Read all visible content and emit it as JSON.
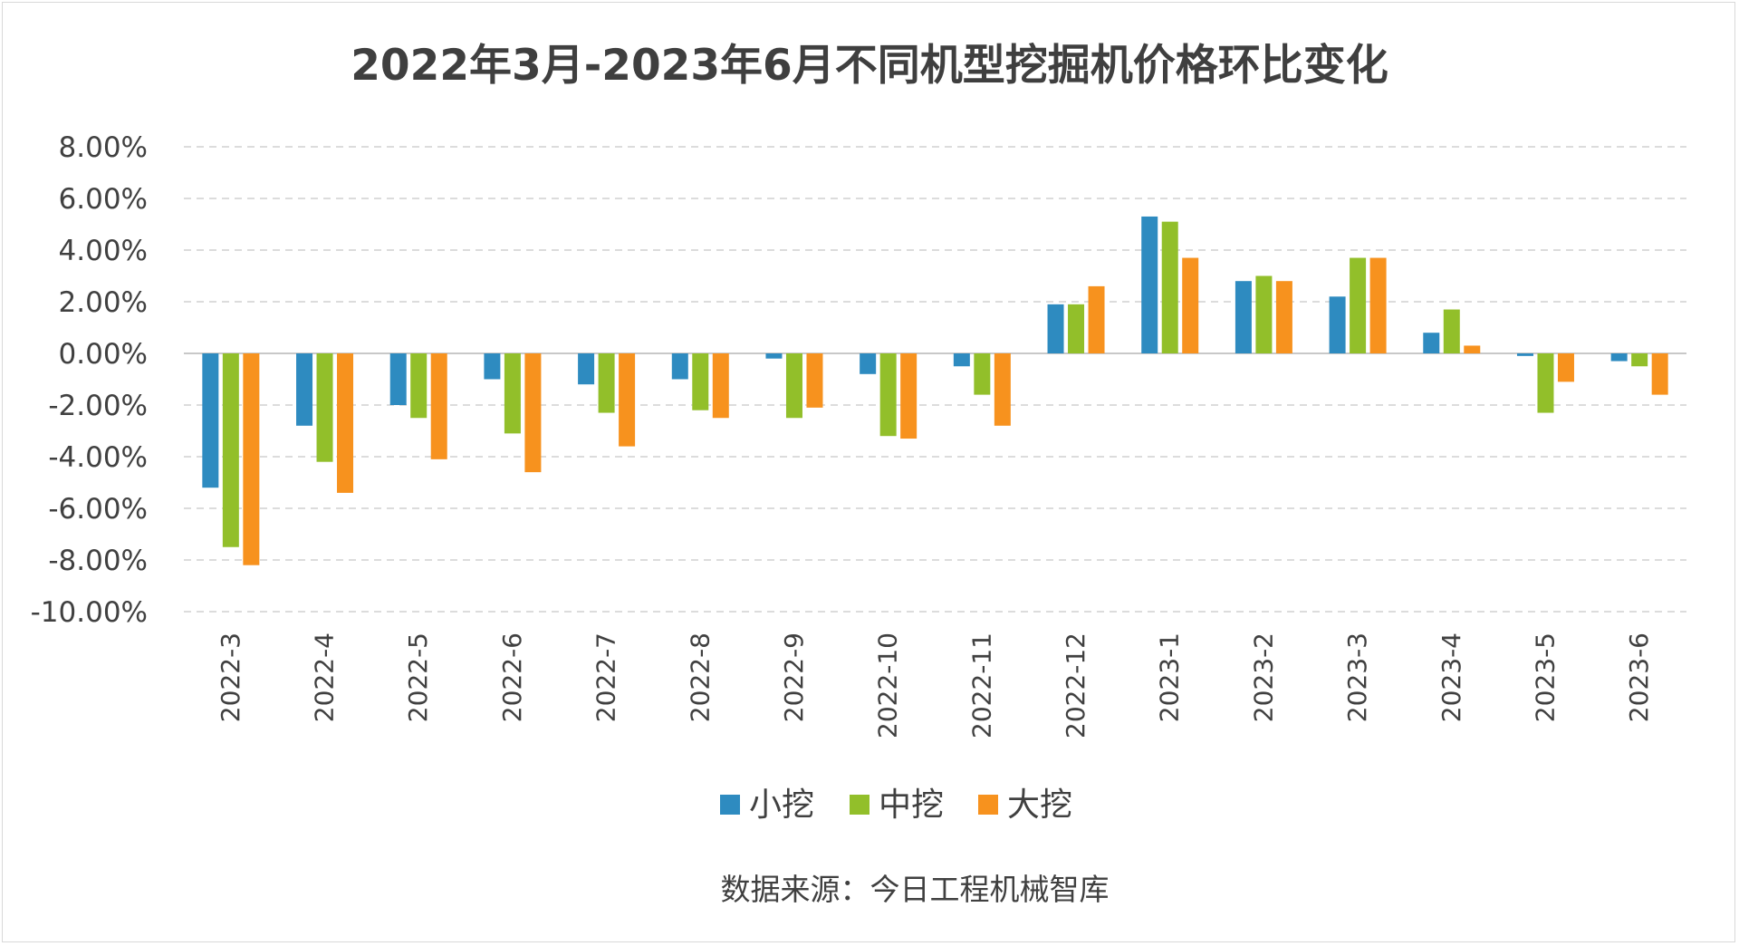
{
  "chart_data": {
    "type": "bar",
    "title": "2022年3月-2023年6月不同机型挖掘机价格环比变化",
    "categories": [
      "2022-3",
      "2022-4",
      "2022-5",
      "2022-6",
      "2022-7",
      "2022-8",
      "2022-9",
      "2022-10",
      "2022-11",
      "2022-12",
      "2023-1",
      "2023-2",
      "2023-3",
      "2023-4",
      "2023-5",
      "2023-6"
    ],
    "series": [
      {
        "name": "小挖",
        "color": "#2e8bc0",
        "values": [
          -5.2,
          -2.8,
          -2.0,
          -1.0,
          -1.2,
          -1.0,
          -0.2,
          -0.8,
          -0.5,
          1.9,
          5.3,
          2.8,
          2.2,
          0.8,
          -0.1,
          -0.3
        ]
      },
      {
        "name": "中挖",
        "color": "#92bf2a",
        "values": [
          -7.5,
          -4.2,
          -2.5,
          -3.1,
          -2.3,
          -2.2,
          -2.5,
          -3.2,
          -1.6,
          1.9,
          5.1,
          3.0,
          3.7,
          1.7,
          -2.3,
          -0.5
        ]
      },
      {
        "name": "大挖",
        "color": "#f7921e",
        "values": [
          -8.2,
          -5.4,
          -4.1,
          -4.6,
          -3.6,
          -2.5,
          -2.1,
          -3.3,
          -2.8,
          2.6,
          3.7,
          2.8,
          3.7,
          0.3,
          -1.1,
          -1.6
        ]
      }
    ],
    "ylim": [
      -10,
      8
    ],
    "yticks": [
      8,
      6,
      4,
      2,
      0,
      -2,
      -4,
      -6,
      -8,
      -10
    ],
    "ytick_labels": [
      "8.00%",
      "6.00%",
      "4.00%",
      "2.00%",
      "0.00%",
      "-2.00%",
      "-4.00%",
      "-6.00%",
      "-8.00%",
      "-10.00%"
    ],
    "grid": true,
    "legend_position": "bottom",
    "source_note": "数据来源：今日工程机械智库"
  }
}
